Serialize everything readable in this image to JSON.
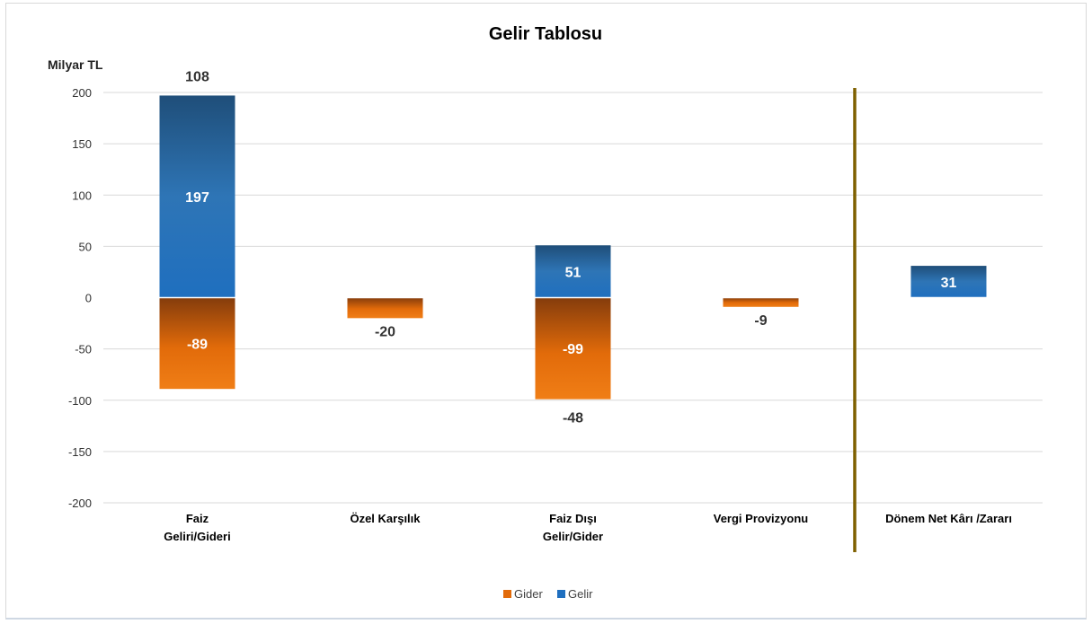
{
  "chart_data": {
    "type": "bar",
    "title": "Gelir Tablosu",
    "ylabel": "Milyar TL",
    "ylim": [
      -200,
      200
    ],
    "yticks": [
      200,
      150,
      100,
      50,
      0,
      -50,
      -100,
      -150,
      -200
    ],
    "categories": [
      [
        "Faiz",
        "Geliri/Gideri"
      ],
      [
        "Özel Karşılık"
      ],
      [
        "Faiz Dışı",
        "Gelir/Gider"
      ],
      [
        "Vergi Provizyonu"
      ],
      [
        "Dönem Net Kârı /Zararı"
      ]
    ],
    "series": [
      {
        "name": "Gider",
        "color": "#e26b0a",
        "values": [
          -89,
          -20,
          -99,
          -9,
          null
        ],
        "labels": [
          "-89",
          "-20",
          "-99",
          "-9",
          null
        ]
      },
      {
        "name": "Gelir",
        "color": "#1f6fbf",
        "values": [
          197,
          null,
          51,
          null,
          31
        ],
        "labels": [
          "197",
          null,
          "51",
          null,
          "31"
        ]
      }
    ],
    "net_labels": [
      "108",
      null,
      "-48",
      null,
      null
    ],
    "separator_after_category": 3,
    "separator_color": "#7f6000",
    "legend_position": "bottom",
    "grid": true
  }
}
